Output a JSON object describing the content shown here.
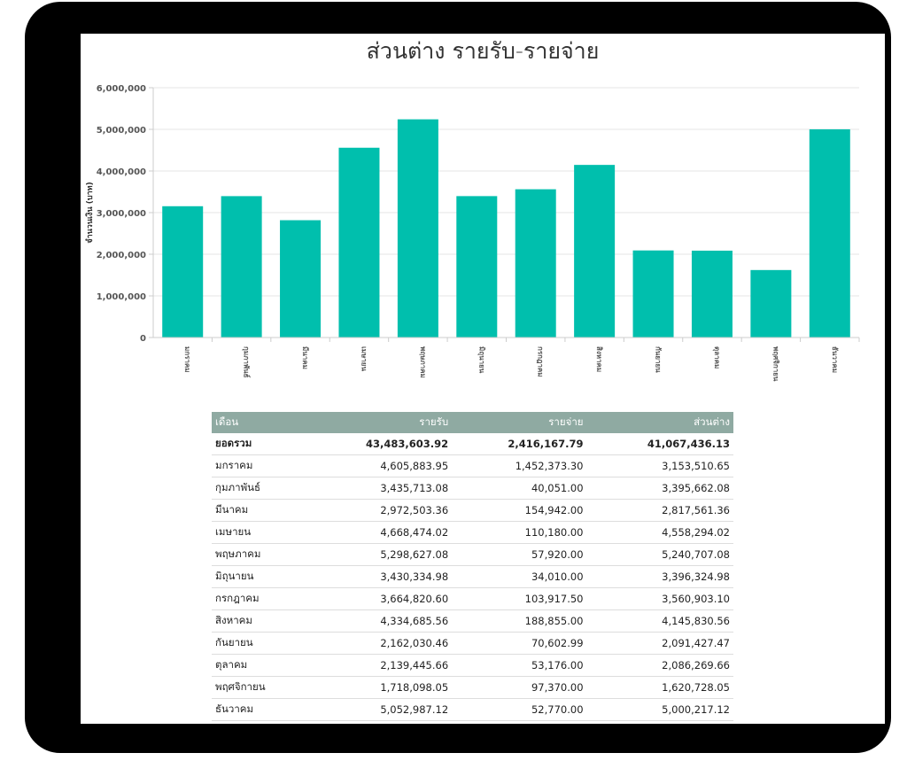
{
  "chart_data": {
    "type": "bar",
    "title": "ส่วนต่าง รายรับ-รายจ่าย",
    "ylabel": "จำนวนเงิน (บาท)",
    "xlabel": "",
    "ylim": [
      0,
      6000000
    ],
    "yticks": [
      "0",
      "1,000,000",
      "2,000,000",
      "3,000,000",
      "4,000,000",
      "5,000,000",
      "6,000,000"
    ],
    "categories": [
      "มกราคม",
      "กุมภาพันธ์",
      "มีนาคม",
      "เมษายน",
      "พฤษภาคม",
      "มิถุนายน",
      "กรกฎาคม",
      "สิงหาคม",
      "กันยายน",
      "ตุลาคม",
      "พฤศจิกายน",
      "ธันวาคม"
    ],
    "values": [
      3153510.65,
      3395662.08,
      2817561.36,
      4558294.02,
      5240707.08,
      3396324.98,
      3560903.1,
      4145830.56,
      2091427.47,
      2086269.66,
      1620728.05,
      5000217.12
    ],
    "bar_color": "#00bfad",
    "grid": true
  },
  "table": {
    "headers": [
      "เดือน",
      "รายรับ",
      "รายจ่าย",
      "ส่วนต่าง"
    ],
    "total": [
      "ยอดรวม",
      "43,483,603.92",
      "2,416,167.79",
      "41,067,436.13"
    ],
    "rows": [
      [
        "มกราคม",
        "4,605,883.95",
        "1,452,373.30",
        "3,153,510.65"
      ],
      [
        "กุมภาพันธ์",
        "3,435,713.08",
        "40,051.00",
        "3,395,662.08"
      ],
      [
        "มีนาคม",
        "2,972,503.36",
        "154,942.00",
        "2,817,561.36"
      ],
      [
        "เมษายน",
        "4,668,474.02",
        "110,180.00",
        "4,558,294.02"
      ],
      [
        "พฤษภาคม",
        "5,298,627.08",
        "57,920.00",
        "5,240,707.08"
      ],
      [
        "มิถุนายน",
        "3,430,334.98",
        "34,010.00",
        "3,396,324.98"
      ],
      [
        "กรกฎาคม",
        "3,664,820.60",
        "103,917.50",
        "3,560,903.10"
      ],
      [
        "สิงหาคม",
        "4,334,685.56",
        "188,855.00",
        "4,145,830.56"
      ],
      [
        "กันยายน",
        "2,162,030.46",
        "70,602.99",
        "2,091,427.47"
      ],
      [
        "ตุลาคม",
        "2,139,445.66",
        "53,176.00",
        "2,086,269.66"
      ],
      [
        "พฤศจิกายน",
        "1,718,098.05",
        "97,370.00",
        "1,620,728.05"
      ],
      [
        "ธันวาคม",
        "5,052,987.12",
        "52,770.00",
        "5,000,217.12"
      ]
    ]
  }
}
